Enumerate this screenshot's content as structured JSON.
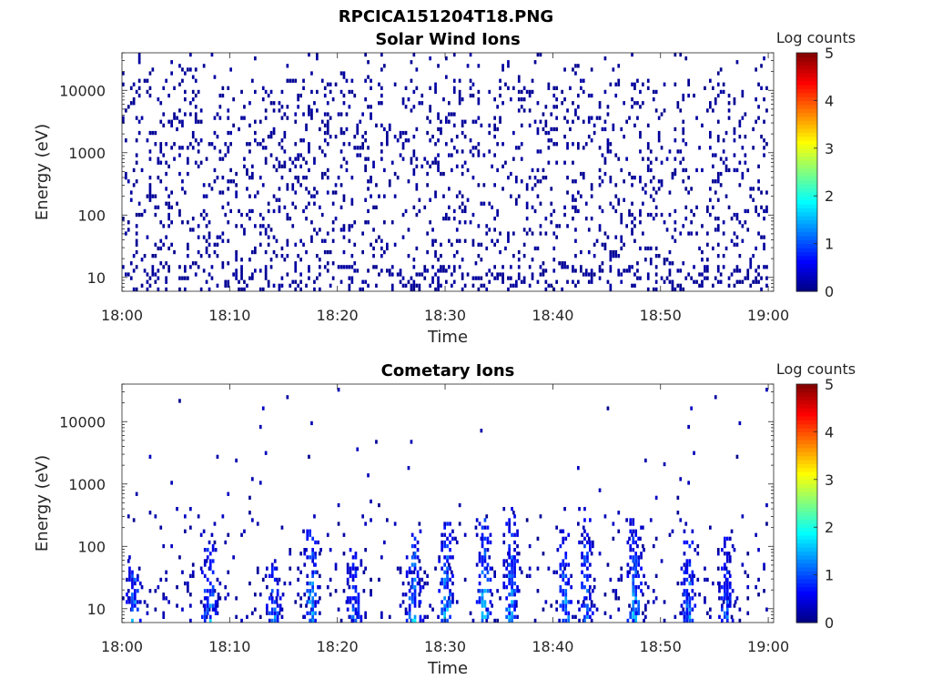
{
  "figure": {
    "title": "RPCICA151204T18.PNG"
  },
  "colorbar": {
    "label": "Log counts",
    "min": 0,
    "max": 5,
    "ticks": [
      "0",
      "1",
      "2",
      "3",
      "4",
      "5"
    ],
    "colormap": "jet"
  },
  "chart_data": [
    {
      "type": "heatmap",
      "title": "Solar Wind Ions",
      "xlabel": "Time",
      "ylabel": "Energy (eV)",
      "x_ticks": [
        "18:00",
        "18:10",
        "18:20",
        "18:30",
        "18:40",
        "18:50",
        "19:00"
      ],
      "x_range_minutes": [
        0,
        60.5
      ],
      "y_scale": "log",
      "y_range_eV": [
        6,
        40000
      ],
      "y_ticks": [
        "10",
        "100",
        "1000",
        "10000"
      ],
      "z_label": "Log counts",
      "z_range": [
        0,
        5
      ],
      "pattern": "sparse single-count pixels spread across all energies 10 eV to 20000 eV for the whole hour; counts mostly at log value ~0"
    },
    {
      "type": "heatmap",
      "title": "Cometary Ions",
      "xlabel": "Time",
      "ylabel": "Energy (eV)",
      "x_ticks": [
        "18:00",
        "18:10",
        "18:20",
        "18:30",
        "18:40",
        "18:50",
        "19:00"
      ],
      "x_range_minutes": [
        0,
        60.5
      ],
      "y_scale": "log",
      "y_range_eV": [
        6,
        40000
      ],
      "y_ticks": [
        "10",
        "100",
        "1000",
        "10000"
      ],
      "z_label": "Log counts",
      "z_range": [
        0,
        5
      ],
      "burst_minutes": [
        1.0,
        8.0,
        14.0,
        17.5,
        21.5,
        27.0,
        30.0,
        33.5,
        36.0,
        41.0,
        43.0,
        47.5,
        52.5,
        56.0
      ],
      "burst_peak_log_counts": [
        1.8,
        1.9,
        1.7,
        2.0,
        1.5,
        2.1,
        2.0,
        2.1,
        1.9,
        2.0,
        1.7,
        2.0,
        1.8,
        1.5
      ],
      "burst_top_energy_eV": [
        80,
        120,
        60,
        200,
        100,
        200,
        250,
        300,
        400,
        250,
        400,
        300,
        200,
        150
      ],
      "pattern": "vertical bursts of cometary ions concentrated below ~400 eV, strongest counts (~2 log counts) near 10-40 eV, sparse counts above 1000 eV"
    }
  ]
}
